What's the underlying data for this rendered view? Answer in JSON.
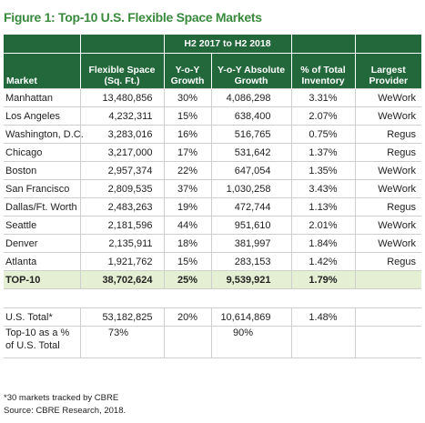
{
  "header": {
    "title": "Figure 1: Top-10 U.S. Flexible Space Markets"
  },
  "table": {
    "group_header": "H2 2017 to H2 2018",
    "columns": [
      "Market",
      "Flexible Space (Sq. Ft.)",
      "Y-o-Y Growth",
      "Y-o-Y Absolute Growth",
      "% of Total Inventory",
      "Largest Provider"
    ],
    "rows": [
      [
        "Manhattan",
        "13,480,856",
        "30%",
        "4,086,298",
        "3.31%",
        "WeWork"
      ],
      [
        "Los Angeles",
        "4,232,311",
        "15%",
        "638,400",
        "2.07%",
        "WeWork"
      ],
      [
        "Washington, D.C.",
        "3,283,016",
        "16%",
        "516,765",
        "0.75%",
        "Regus"
      ],
      [
        "Chicago",
        "3,217,000",
        "17%",
        "531,642",
        "1.37%",
        "Regus"
      ],
      [
        "Boston",
        "2,957,374",
        "22%",
        "647,054",
        "1.35%",
        "WeWork"
      ],
      [
        "San Francisco",
        "2,809,535",
        "37%",
        "1,030,258",
        "3.43%",
        "WeWork"
      ],
      [
        "Dallas/Ft. Worth",
        "2,483,263",
        "19%",
        "472,744",
        "1.13%",
        "Regus"
      ],
      [
        "Seattle",
        "2,181,596",
        "44%",
        "951,610",
        "2.01%",
        "WeWork"
      ],
      [
        "Denver",
        "2,135,911",
        "18%",
        "381,997",
        "1.84%",
        "WeWork"
      ],
      [
        "Atlanta",
        "1,921,762",
        "15%",
        "283,153",
        "1.42%",
        "Regus"
      ]
    ],
    "total_row": [
      "TOP-10",
      "38,702,624",
      "25%",
      "9,539,921",
      "1.79%"
    ],
    "us_total_row": [
      "U.S. Total*",
      "53,182,825",
      "20%",
      "10,614,869",
      "1.48%"
    ],
    "share_row": {
      "label": "Top-10 as a % of U.S. Total",
      "space": "73%",
      "absolute_growth": "90%"
    }
  },
  "footnotes": [
    "*30 markets tracked by CBRE",
    "Source: CBRE Research, 2018."
  ]
}
